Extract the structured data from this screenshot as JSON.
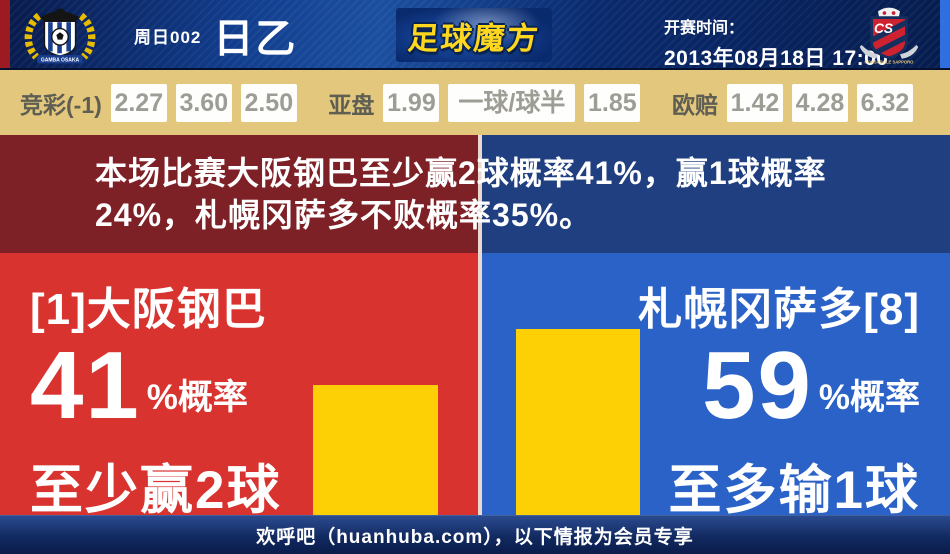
{
  "header": {
    "match_no": "周日002",
    "league": "日乙",
    "logo_text": "足球魔方",
    "kickoff_label": "开赛时间：",
    "kickoff_time": "2013年08月18日 17:00",
    "home_badge": {
      "caption": "GAMBA OSAKA"
    },
    "away_badge": {
      "monogram": "CS",
      "caption": "CONSADOLE SAPPORO"
    }
  },
  "odds": {
    "groups": [
      {
        "label": "竞彩(-1)",
        "values": [
          "2.27",
          "3.60",
          "2.50"
        ]
      },
      {
        "label": "亚盘",
        "values": [
          "1.99",
          "一球/球半",
          "1.85"
        ]
      },
      {
        "label": "欧赔",
        "values": [
          "1.42",
          "4.28",
          "6.32"
        ]
      }
    ]
  },
  "summary": {
    "line1": "本场比赛大阪钢巴至少赢2球概率41%，赢1球概率",
    "line2": "24%，札幌冈萨多不败概率35%。"
  },
  "home_panel": {
    "team": "[1]大阪钢巴",
    "percent": "41",
    "percent_suffix": "%概率",
    "outcome": "至少赢2球",
    "bar_value": 41
  },
  "away_panel": {
    "team": "札幌冈萨多[8]",
    "percent": "59",
    "percent_suffix": "%概率",
    "outcome": "至多输1球",
    "bar_value": 59
  },
  "footer": {
    "text": "欢呼吧（huanhuba.com），以下情报为会员专享"
  },
  "colors": {
    "panel_red": "#d8332f",
    "panel_blue": "#2b62c8",
    "message_red": "#7e2127",
    "message_blue": "#1f3f80",
    "bar_yellow": "#fcd005",
    "odds_background": "#e2c77c",
    "header_navy": "#0a2a6e"
  }
}
